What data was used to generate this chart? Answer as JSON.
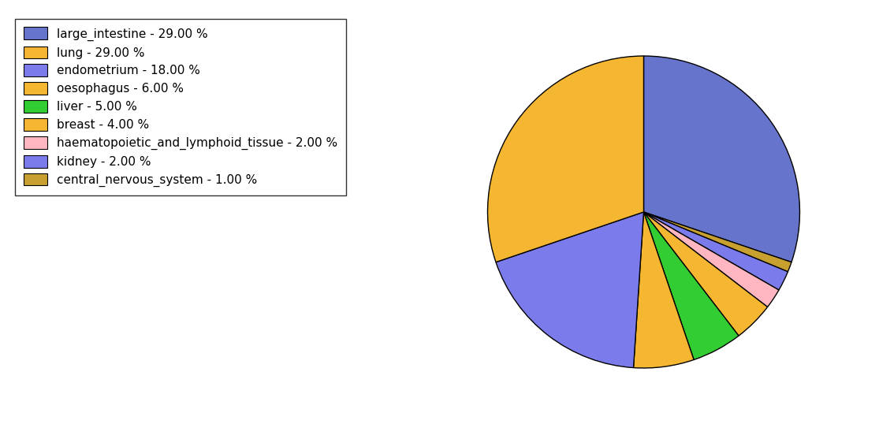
{
  "labels": [
    "large_intestine - 29.00 %",
    "lung - 29.00 %",
    "endometrium - 18.00 %",
    "oesophagus - 6.00 %",
    "liver - 5.00 %",
    "breast - 4.00 %",
    "haematopoietic_and_lymphoid_tissue - 2.00 %",
    "kidney - 2.00 %",
    "central_nervous_system - 1.00 %"
  ],
  "values": [
    29,
    29,
    18,
    6,
    5,
    4,
    2,
    2,
    1
  ],
  "colors": [
    "#6674cc",
    "#f5b731",
    "#7b7beb",
    "#f5b731",
    "#32cd32",
    "#f5b731",
    "#ffb6c1",
    "#7b7beb",
    "#c8a030"
  ],
  "startangle": 90,
  "figsize": [
    11.34,
    5.38
  ],
  "dpi": 100
}
